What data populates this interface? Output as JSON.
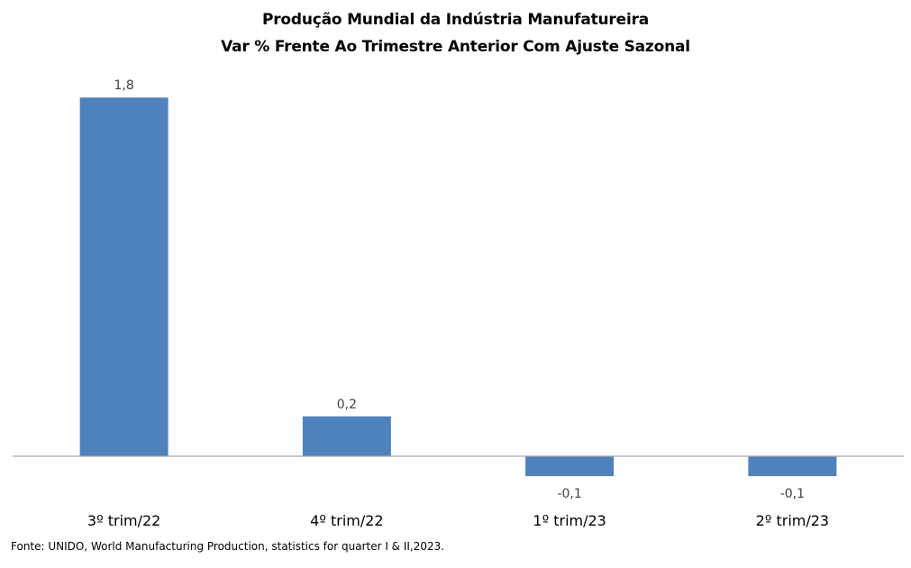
{
  "chart_data": {
    "type": "bar",
    "title": "Produção Mundial da Indústria Manufatureira",
    "subtitle": "Var % Frente Ao Trimestre Anterior Com Ajuste Sazonal",
    "categories": [
      "3º trim/22",
      "4º trim/22",
      "1º trim/23",
      "2º trim/23"
    ],
    "values": [
      1.8,
      0.2,
      -0.1,
      -0.1
    ],
    "data_labels": [
      "1,8",
      "0,2",
      "-0,1",
      "-0,1"
    ],
    "xlabel": "",
    "ylabel": "",
    "ylim": [
      -0.2,
      1.9
    ],
    "grid": false,
    "legend": "none",
    "bar_color": "#4f81bd",
    "axis_color": "#a6a6a6"
  },
  "source": "Fonte: UNIDO, World Manufacturing Production, statistics for quarter I & II,2023."
}
